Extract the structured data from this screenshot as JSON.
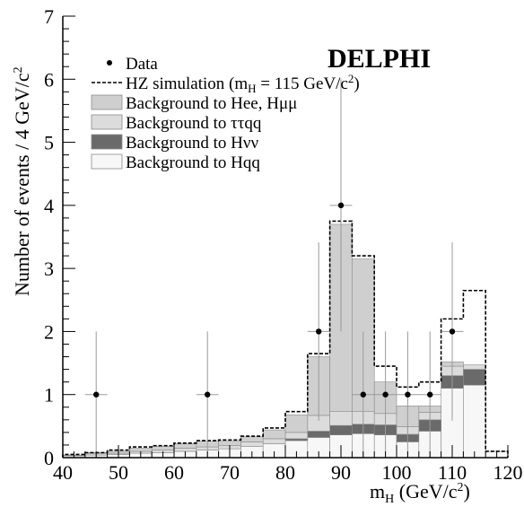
{
  "chart_data": {
    "type": "histogram",
    "logo": "DELPHI",
    "xlabel": "m_H (GeV/c^2)",
    "ylabel": "Number of events / 4 GeV/c^2",
    "xlim": [
      40,
      120
    ],
    "ylim": [
      0,
      7
    ],
    "x_ticks": [
      "40",
      "50",
      "60",
      "70",
      "80",
      "90",
      "100",
      "110",
      "120"
    ],
    "y_ticks": [
      "0",
      "1",
      "2",
      "3",
      "4",
      "5",
      "6",
      "7"
    ],
    "bin_edges": [
      40,
      44,
      48,
      52,
      56,
      60,
      64,
      68,
      72,
      76,
      80,
      84,
      88,
      92,
      96,
      100,
      104,
      108,
      112,
      116,
      120
    ],
    "stack": [
      {
        "name": "Background to Hqq",
        "color": "#f7f7f7",
        "values": [
          0.03,
          0.04,
          0.05,
          0.07,
          0.08,
          0.1,
          0.12,
          0.14,
          0.18,
          0.22,
          0.27,
          0.32,
          0.36,
          0.38,
          0.36,
          0.25,
          0.42,
          1.1,
          1.15,
          0.1
        ]
      },
      {
        "name": "Background to Hvv",
        "color": "#6a6a6a",
        "values": [
          0.0,
          0.0,
          0.0,
          0.0,
          0.0,
          0.0,
          0.0,
          0.0,
          0.0,
          0.0,
          0.03,
          0.1,
          0.15,
          0.15,
          0.16,
          0.12,
          0.18,
          0.2,
          0.25,
          0.0
        ]
      },
      {
        "name": "Background to ττqq",
        "color": "#dcdcdc",
        "values": [
          0.01,
          0.02,
          0.02,
          0.03,
          0.04,
          0.05,
          0.05,
          0.05,
          0.07,
          0.08,
          0.1,
          0.25,
          0.22,
          0.2,
          0.18,
          0.12,
          0.12,
          0.15,
          0.07,
          0.0
        ]
      },
      {
        "name": "Background to Hee, Hμμ",
        "color": "#cfcfcf",
        "values": [
          0.0,
          0.02,
          0.03,
          0.05,
          0.06,
          0.07,
          0.09,
          0.07,
          0.08,
          0.14,
          0.28,
          0.93,
          2.97,
          2.42,
          0.5,
          0.33,
          0.1,
          0.07,
          0.0,
          0.0
        ]
      }
    ],
    "signal": {
      "name": "HZ simulation (m_H = 115 GeV/c^2)",
      "total_values": [
        0.05,
        0.08,
        0.12,
        0.17,
        0.19,
        0.23,
        0.27,
        0.28,
        0.34,
        0.47,
        0.73,
        1.65,
        3.75,
        3.2,
        1.45,
        1.12,
        1.2,
        2.2,
        2.65,
        0.1
      ]
    },
    "data": {
      "name": "Data",
      "x": [
        46,
        66,
        86,
        90,
        94,
        98,
        102,
        106,
        110
      ],
      "y": [
        1,
        1,
        2,
        4,
        1,
        1,
        1,
        1,
        2
      ],
      "xerr": 2
    },
    "legend": [
      {
        "label": "Data",
        "marker": "dot"
      },
      {
        "label": "HZ simulation (m",
        "sub": "H",
        "mid": " = 115 GeV/c",
        "sup": "2",
        "post": ")",
        "marker": "dashed"
      },
      {
        "label": "Background to Hee, Hμμ",
        "marker": "box",
        "color": "#cfcfcf"
      },
      {
        "label": "Background to ττqq",
        "marker": "box",
        "color": "#dcdcdc"
      },
      {
        "label": "Background to Hνν",
        "marker": "box",
        "color": "#6a6a6a"
      },
      {
        "label": "Background to Hqq",
        "marker": "box",
        "color": "#f7f7f7"
      }
    ],
    "legend_position": "top-center",
    "grid": false
  }
}
